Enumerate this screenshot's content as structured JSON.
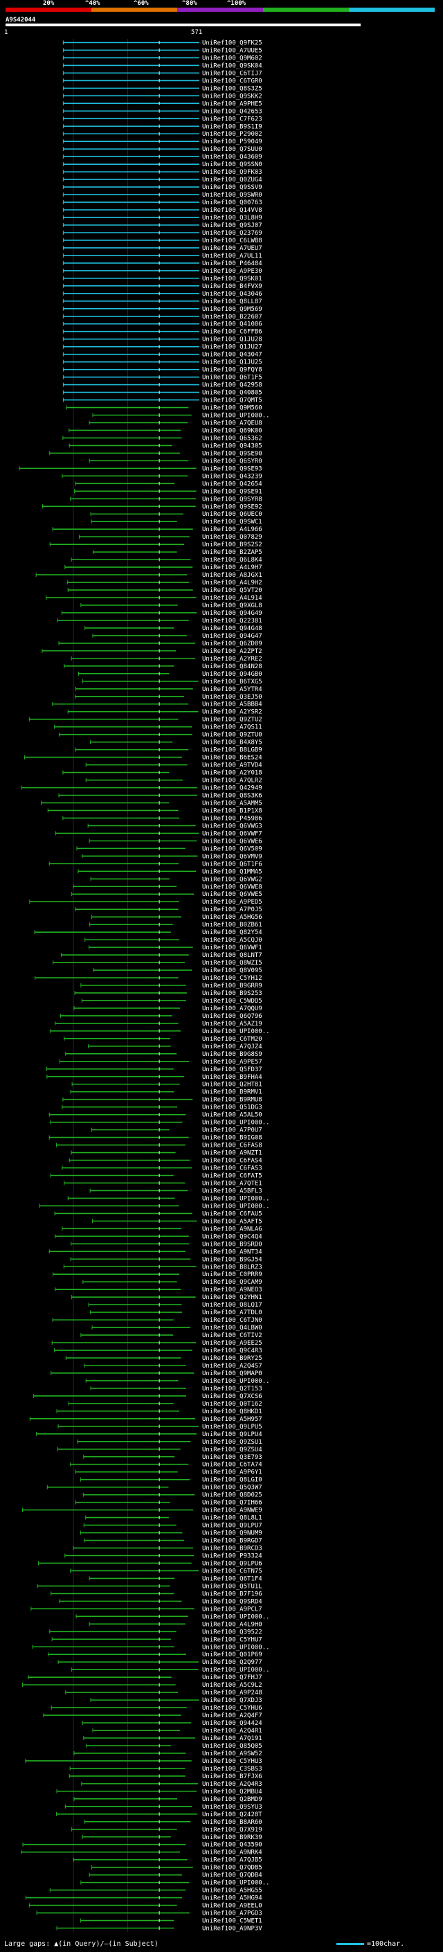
{
  "scale": {
    "ticks": [
      "20%",
      "^40%",
      "^60%",
      "^80%",
      "^100%"
    ],
    "colors": [
      "#e00000",
      "#e07000",
      "#9020c0",
      "#20b020",
      "#20c0e0"
    ]
  },
  "query": {
    "name": "A9S42044",
    "start": "1",
    "end": "571"
  },
  "legend": {
    "text": "Large gaps: ▲(in Query)/—(in Subject)",
    "key": "=100char."
  },
  "chart_data": {
    "type": "alignment",
    "labels": [
      "UniRef100_Q9FK25",
      "UniRef100_A7UUE5",
      "UniRef100_Q9M602",
      "UniRef100_Q9SK04",
      "UniRef100_C6TIJ7",
      "UniRef100_C6TGR0",
      "UniRef100_Q8S3Z5",
      "UniRef100_Q9SKK2",
      "UniRef100_A9PHE5",
      "UniRef100_Q42653",
      "UniRef100_C7F623",
      "UniRef100_B9S1I9",
      "UniRef100_P29002",
      "UniRef100_P59049",
      "UniRef100_Q7SUU0",
      "UniRef100_Q43609",
      "UniRef100_Q9SSN0",
      "UniRef100_Q9FK03",
      "UniRef100_Q0ZUG4",
      "UniRef100_Q9SSV9",
      "UniRef100_Q9SWR0",
      "UniRef100_Q00763",
      "UniRef100_Q14VV8",
      "UniRef100_Q3L8H9",
      "UniRef100_Q9SJ07",
      "UniRef100_Q23769",
      "UniRef100_C6LWB8",
      "UniRef100_A7UEU7",
      "UniRef100_A7UL11",
      "UniRef100_P46484",
      "UniRef100_A9PE30",
      "UniRef100_Q9SK01",
      "UniRef100_B4FVX9",
      "UniRef100_Q43046",
      "UniRef100_Q8LL87",
      "UniRef100_Q9M569",
      "UniRef100_B22607",
      "UniRef100_Q41086",
      "UniRef100_C6FFB6",
      "UniRef100_Q1JU28",
      "UniRef100_Q1JU27",
      "UniRef100_Q43047",
      "UniRef100_Q1JU25",
      "UniRef100_Q9FQY8",
      "UniRef100_Q6T1F5",
      "UniRef100_Q42958",
      "UniRef100_Q40805",
      "UniRef100_Q7QMT5",
      "UniRef100_Q9M560",
      "UniRef100_UPI000..",
      "UniRef100_A7QEU8",
      "UniRef100_Q69K00",
      "UniRef100_Q65362",
      "UniRef100_Q94305",
      "UniRef100_Q9SE90",
      "UniRef100_Q6SYR0",
      "UniRef100_Q9SE93",
      "UniRef100_Q43239",
      "UniRef100_Q42654",
      "UniRef100_Q9SE91",
      "UniRef100_Q9SYR8",
      "UniRef100_Q9SE92",
      "UniRef100_Q6UEC0",
      "UniRef100_Q9SWC1",
      "UniRef100_A4L966",
      "UniRef100_Q07829",
      "UniRef100_B9S2S2",
      "UniRef100_B2ZAP5",
      "UniRef100_Q6L8K4",
      "UniRef100_A4L9H7",
      "UniRef100_A8JGX1",
      "UniRef100_A4L9H2",
      "UniRef100_Q5VT20",
      "UniRef100_A4L914",
      "UniRef100_Q9XGL8",
      "UniRef100_Q94G49",
      "UniRef100_Q22381",
      "UniRef100_Q94G48",
      "UniRef100_Q94G47",
      "UniRef100_Q6ZD89",
      "UniRef100_A2ZPT2",
      "UniRef100_A2YRE2",
      "UniRef100_Q84N28",
      "UniRef100_Q94GB0",
      "UniRef100_B6TXG5",
      "UniRef100_A5YTR4",
      "UniRef100_Q3EJ50",
      "UniRef100_A5BBB4",
      "UniRef100_A2YSR2",
      "UniRef100_Q9ZTU2",
      "UniRef100_A7QS11",
      "UniRef100_Q9ZTU0",
      "UniRef100_B4X8Y5",
      "UniRef100_B8LGB9",
      "UniRef100_B6ES24",
      "UniRef100_A9TVD4",
      "UniRef100_A2Y018",
      "UniRef100_A7QLR2",
      "UniRef100_Q42949",
      "UniRef100_Q8S3K6",
      "UniRef100_A5AMM5",
      "UniRef100_B1P1X8",
      "UniRef100_P45986",
      "UniRef100_Q6VWG3",
      "UniRef100_Q6VWF7",
      "UniRef100_Q6VWE6",
      "UniRef100_Q6V509",
      "UniRef100_Q6VMV9",
      "UniRef100_Q6T1F6",
      "UniRef100_Q1MMA5",
      "UniRef100_Q6VWG2",
      "UniRef100_Q6VWE8",
      "UniRef100_Q6VWE5",
      "UniRef100_A9PED5",
      "UniRef100_A7P0J5",
      "UniRef100_A5HG56",
      "UniRef100_B0ZB61",
      "UniRef100_Q82Y54",
      "UniRef100_A5CQJ0",
      "UniRef100_Q6VWF1",
      "UniRef100_Q8LNT7",
      "UniRef100_Q8WZI5",
      "UniRef100_Q8V095",
      "UniRef100_C5YH12",
      "UniRef100_B9GRR9",
      "UniRef100_B9S253",
      "UniRef100_C5WDD5",
      "UniRef100_A7QQU9",
      "UniRef100_Q6Q796",
      "UniRef100_A5AZ19",
      "UniRef100_UPI000..",
      "UniRef100_C6TM20",
      "UniRef100_A7QJZ4",
      "UniRef100_B9G8S9",
      "UniRef100_A9PE57",
      "UniRef100_Q5FD37",
      "UniRef100_B9FHA4",
      "UniRef100_Q2HT81",
      "UniRef100_B9RMV1",
      "UniRef100_B9RMU8",
      "UniRef100_Q51DG3",
      "UniRef100_A5AL50",
      "UniRef100_UPI000..",
      "UniRef100_A7P0U7",
      "UniRef100_B9IG08",
      "UniRef100_C6FAS8",
      "UniRef100_A9NZT1",
      "UniRef100_C6FAS4",
      "UniRef100_C6FAS3",
      "UniRef100_C6FAT5",
      "UniRef100_A7QTE1",
      "UniRef100_A5BFL3",
      "UniRef100_UPI000..",
      "UniRef100_UPI000..",
      "UniRef100_C6FAU5",
      "UniRef100_A5AFT5",
      "UniRef100_A9NLA6",
      "UniRef100_Q9C4Q4",
      "UniRef100_B9SRD0",
      "UniRef100_A9NT34",
      "UniRef100_B9GJ54",
      "UniRef100_B8LRZ3",
      "UniRef100_C0PRR9",
      "UniRef100_Q9CAM9",
      "UniRef100_A9NEO3",
      "UniRef100_Q2YHN1",
      "UniRef100_Q8LQ17",
      "UniRef100_A7TDL0",
      "UniRef100_C6TJN0",
      "UniRef100_Q4LBW0",
      "UniRef100_C6TIV2",
      "UniRef100_A9EE25",
      "UniRef100_Q9C4R3",
      "UniRef100_B9RY25",
      "UniRef100_A2Q4S7",
      "UniRef100_Q9MAP0",
      "UniRef100_UPI000..",
      "UniRef100_Q2T153",
      "UniRef100_Q7XCS6",
      "UniRef100_Q0T162",
      "UniRef100_Q8HKD1",
      "UniRef100_A5H957",
      "UniRef100_Q9LPU5",
      "UniRef100_Q9LPU4",
      "UniRef100_Q9ZSU1",
      "UniRef100_Q9ZSU4",
      "UniRef100_Q3E793",
      "UniRef100_C6TA74",
      "UniRef100_A9P6Y1",
      "UniRef100_Q8LGI0",
      "UniRef100_Q5Q3W7",
      "UniRef100_Q8D025",
      "UniRef100_Q7IH66",
      "UniRef100_A9NWE9",
      "UniRef100_Q8L8L1",
      "UniRef100_Q9LPU7",
      "UniRef100_Q9NUM9",
      "UniRef100_B9RGD7",
      "UniRef100_B9RCD3",
      "UniRef100_P93324",
      "UniRef100_Q9LPU6",
      "UniRef100_C6TN75",
      "UniRef100_Q6T1F4",
      "UniRef100_Q5TU1L",
      "UniRef100_B7F196",
      "UniRef100_Q9SRD4",
      "UniRef100_A9PCL7",
      "UniRef100_UPI000..",
      "UniRef100_A4L9H0",
      "UniRef100_Q39522",
      "UniRef100_C5YHU7",
      "UniRef100_UPI000..",
      "UniRef100_Q01P69",
      "UniRef100_Q2Q977",
      "UniRef100_UPI000..",
      "UniRef100_Q7FHJ7",
      "UniRef100_A5C9L2",
      "UniRef100_A9P248",
      "UniRef100_Q7XDJ3",
      "UniRef100_C5YHU6",
      "UniRef100_A2Q4F7",
      "UniRef100_Q94424",
      "UniRef100_A2Q4R1",
      "UniRef100_A7Q191",
      "UniRef100_Q85Q05",
      "UniRef100_A9SW52",
      "UniRef100_C5YHU3",
      "UniRef100_C3SBS3",
      "UniRef100_B7FJX6",
      "UniRef100_A2Q4R3",
      "UniRef100_Q2MBU4",
      "UniRef100_Q2BMD9",
      "UniRef100_Q9SYU3",
      "UniRef100_Q2428T",
      "UniRef100_B8AR60",
      "UniRef100_Q7X919",
      "UniRef100_B9RK39",
      "UniRef100_Q43590",
      "UniRef100_A9NRK4",
      "UniRef100_A7QJB5",
      "UniRef100_Q7QDB5",
      "UniRef100_Q7QDB4",
      "UniRef100_UPI000..",
      "UniRef100_A5HG55",
      "UniRef100_A5HG94",
      "UniRef100_A9EEL0",
      "UniRef100_A7PGD3",
      "UniRef100_C5WET1",
      "UniRef100_A9NP3V"
    ],
    "query_length": 571,
    "high_identity_rows": 48,
    "x_axis": [
      1,
      571
    ],
    "identity_bins": [
      "<20%",
      "20-40%",
      "40-60%",
      "60-80%",
      ">=80%"
    ]
  }
}
